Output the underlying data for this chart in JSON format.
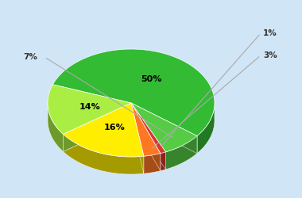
{
  "slices": [
    50,
    7,
    1,
    3,
    16,
    14
  ],
  "colors": [
    "#33bb33",
    "#55cc44",
    "#dd3333",
    "#ff7722",
    "#ffee00",
    "#aaee44"
  ],
  "labels": [
    "50%",
    "7%",
    "1%",
    "3%",
    "16%",
    "14%"
  ],
  "outside_labels": [
    "7%",
    "1%",
    "3%"
  ],
  "bg_color": "#d0e5f5",
  "startangle": 160,
  "depth_scale": 0.13
}
